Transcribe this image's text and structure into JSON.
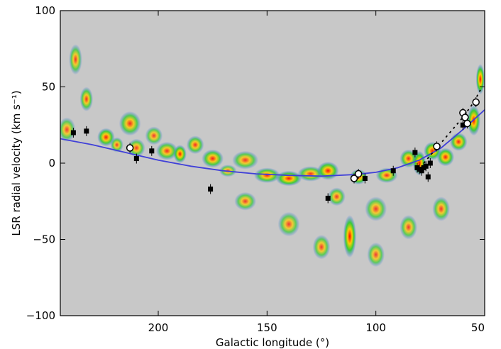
{
  "chart_data": {
    "type": "scatter",
    "title": "",
    "xlabel": "Galactic longitude (°)",
    "ylabel": "LSR radial velocity (km s⁻¹)",
    "xlim": [
      245,
      50
    ],
    "ylim": [
      -100,
      100
    ],
    "x_ticks": [
      200,
      150,
      100,
      50
    ],
    "y_ticks": [
      -100,
      -50,
      0,
      50,
      100
    ],
    "x_tick_labels": [
      "200",
      "150",
      "100",
      "50"
    ],
    "y_tick_labels": [
      "−100",
      "−50",
      "0",
      "50",
      "100"
    ],
    "grid": false,
    "background": "#c8c8c8",
    "series": [
      {
        "marker": "filled-square",
        "color": "#000000",
        "points": [
          {
            "x": 239,
            "y": 20
          },
          {
            "x": 233,
            "y": 21
          },
          {
            "x": 210,
            "y": 3
          },
          {
            "x": 203,
            "y": 8
          },
          {
            "x": 176,
            "y": -17
          },
          {
            "x": 122,
            "y": -23
          },
          {
            "x": 105,
            "y": -10
          },
          {
            "x": 92,
            "y": -5
          },
          {
            "x": 82,
            "y": 7
          },
          {
            "x": 81,
            "y": -3
          },
          {
            "x": 80,
            "y": -4
          },
          {
            "x": 79,
            "y": -5
          },
          {
            "x": 78,
            "y": -3
          },
          {
            "x": 77,
            "y": -2
          },
          {
            "x": 76,
            "y": -9
          },
          {
            "x": 75,
            "y": 0
          },
          {
            "x": 60,
            "y": 25
          }
        ]
      },
      {
        "marker": "open-circle",
        "color": "#ffffff",
        "points": [
          {
            "x": 213,
            "y": 10
          },
          {
            "x": 110,
            "y": -10
          },
          {
            "x": 108,
            "y": -7
          },
          {
            "x": 72,
            "y": 11
          },
          {
            "x": 60,
            "y": 33
          },
          {
            "x": 59,
            "y": 30
          },
          {
            "x": 58,
            "y": 26
          },
          {
            "x": 54,
            "y": 40
          }
        ]
      }
    ],
    "curves": [
      {
        "style": "solid",
        "color": "#4040d8",
        "x": [
          245,
          230,
          215,
          200,
          185,
          170,
          155,
          140,
          125,
          110,
          100,
          90,
          80,
          70,
          60,
          50
        ],
        "y": [
          16,
          12,
          7,
          2,
          -2,
          -5,
          -7,
          -8,
          -8.5,
          -7.5,
          -6,
          -3,
          2,
          10,
          22,
          35
        ]
      },
      {
        "style": "dashed",
        "color": "#000000",
        "x": [
          78,
          72,
          66,
          60,
          55,
          52
        ],
        "y": [
          0,
          10,
          20,
          30,
          40,
          48
        ]
      }
    ],
    "emission_blobs": [
      {
        "x": 238,
        "y": 68,
        "w": 3,
        "h": 10,
        "level": 0.5
      },
      {
        "x": 242,
        "y": 22,
        "w": 4,
        "h": 8,
        "level": 0.4
      },
      {
        "x": 233,
        "y": 42,
        "w": 3,
        "h": 8,
        "level": 0.6
      },
      {
        "x": 224,
        "y": 17,
        "w": 4,
        "h": 6,
        "level": 0.8
      },
      {
        "x": 219,
        "y": 12,
        "w": 3,
        "h": 5,
        "level": 0.5
      },
      {
        "x": 213,
        "y": 26,
        "w": 5,
        "h": 8,
        "level": 0.6
      },
      {
        "x": 210,
        "y": 10,
        "w": 4,
        "h": 6,
        "level": 0.5
      },
      {
        "x": 202,
        "y": 18,
        "w": 4,
        "h": 6,
        "level": 0.45
      },
      {
        "x": 196,
        "y": 8,
        "w": 5,
        "h": 6,
        "level": 0.6
      },
      {
        "x": 190,
        "y": 6,
        "w": 3,
        "h": 6,
        "level": 0.9
      },
      {
        "x": 183,
        "y": 12,
        "w": 4,
        "h": 6,
        "level": 0.6
      },
      {
        "x": 175,
        "y": 3,
        "w": 5,
        "h": 6,
        "level": 0.7
      },
      {
        "x": 168,
        "y": -5,
        "w": 4,
        "h": 4,
        "level": 0.4
      },
      {
        "x": 160,
        "y": 2,
        "w": 6,
        "h": 6,
        "level": 0.5
      },
      {
        "x": 150,
        "y": -8,
        "w": 6,
        "h": 5,
        "level": 0.7
      },
      {
        "x": 140,
        "y": -10,
        "w": 6,
        "h": 5,
        "level": 0.85
      },
      {
        "x": 130,
        "y": -7,
        "w": 6,
        "h": 5,
        "level": 0.6
      },
      {
        "x": 122,
        "y": -5,
        "w": 5,
        "h": 6,
        "level": 0.85
      },
      {
        "x": 118,
        "y": -22,
        "w": 4,
        "h": 6,
        "level": 0.5
      },
      {
        "x": 112,
        "y": -48,
        "w": 3,
        "h": 14,
        "level": 0.95
      },
      {
        "x": 108,
        "y": -9,
        "w": 4,
        "h": 5,
        "level": 0.9
      },
      {
        "x": 100,
        "y": -30,
        "w": 5,
        "h": 8,
        "level": 0.45
      },
      {
        "x": 95,
        "y": -8,
        "w": 5,
        "h": 5,
        "level": 0.6
      },
      {
        "x": 85,
        "y": 3,
        "w": 4,
        "h": 6,
        "level": 0.7
      },
      {
        "x": 80,
        "y": 0,
        "w": 3,
        "h": 8,
        "level": 1.0
      },
      {
        "x": 74,
        "y": 8,
        "w": 4,
        "h": 6,
        "level": 0.85
      },
      {
        "x": 68,
        "y": 4,
        "w": 4,
        "h": 6,
        "level": 0.8
      },
      {
        "x": 62,
        "y": 14,
        "w": 4,
        "h": 6,
        "level": 0.75
      },
      {
        "x": 55,
        "y": 28,
        "w": 3,
        "h": 10,
        "level": 0.9
      },
      {
        "x": 52,
        "y": 55,
        "w": 2,
        "h": 10,
        "level": 1.0
      },
      {
        "x": 140,
        "y": -40,
        "w": 5,
        "h": 8,
        "level": 0.4
      },
      {
        "x": 125,
        "y": -55,
        "w": 4,
        "h": 8,
        "level": 0.45
      },
      {
        "x": 100,
        "y": -60,
        "w": 4,
        "h": 8,
        "level": 0.4
      },
      {
        "x": 85,
        "y": -42,
        "w": 4,
        "h": 8,
        "level": 0.45
      },
      {
        "x": 70,
        "y": -30,
        "w": 4,
        "h": 8,
        "level": 0.5
      },
      {
        "x": 160,
        "y": -25,
        "w": 5,
        "h": 6,
        "level": 0.45
      }
    ]
  }
}
